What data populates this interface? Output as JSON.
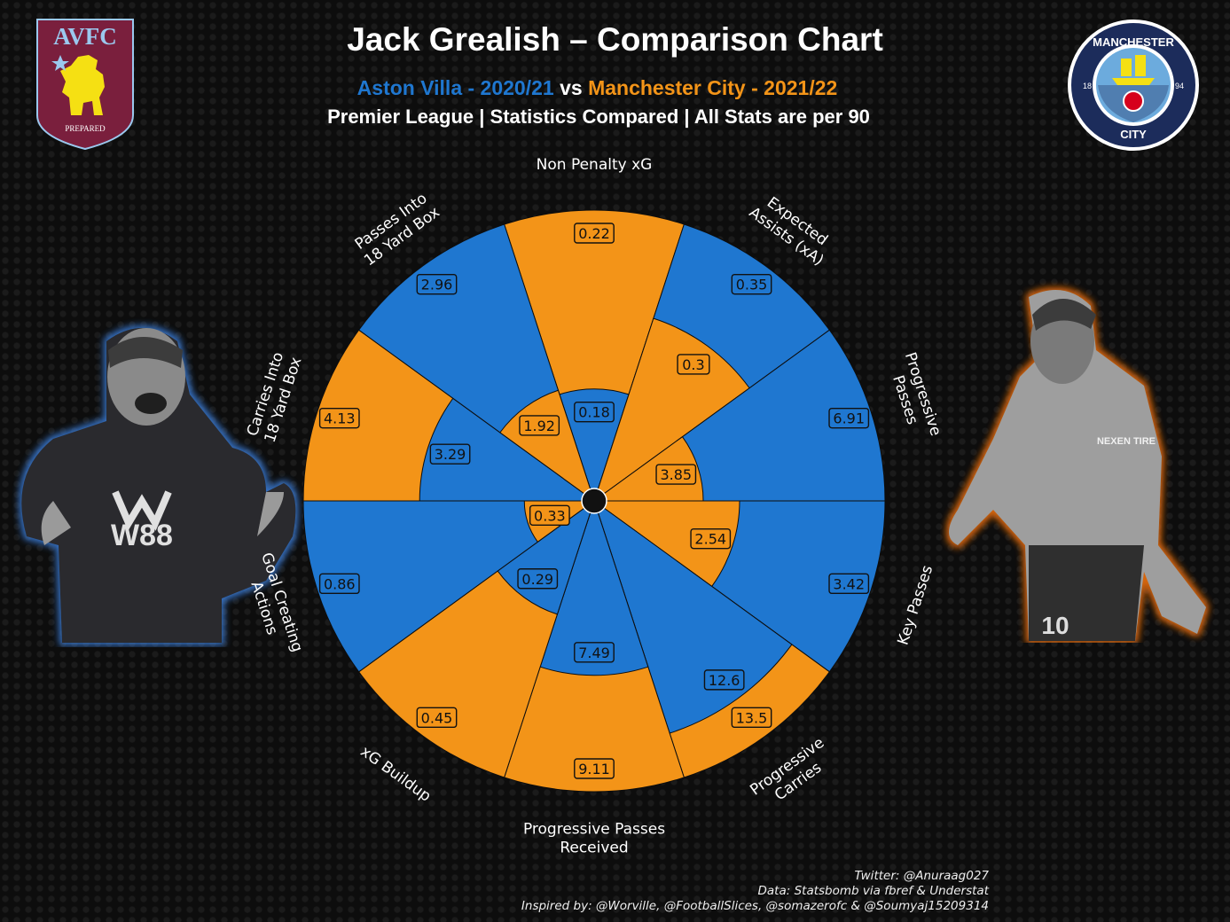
{
  "title": "Jack Grealish – Comparison Chart",
  "subtitle": {
    "villa": "Aston Villa - 2020/21",
    "vs": "vs",
    "city": "Manchester City - 2021/22",
    "line2": "Premier League | Statistics Compared | All Stats are per 90"
  },
  "colors": {
    "villa": "#1f77d0",
    "city": "#f39418",
    "villa_badge": "#7a1f3d",
    "city_badge": "#1c2c5b"
  },
  "badges": {
    "villa": {
      "text": "AVFC",
      "motto": "PREPARED"
    },
    "city": {
      "top_text": "MANCHESTER",
      "bottom_text": "CITY",
      "year_left": "18",
      "year_right": "94"
    }
  },
  "players": {
    "left": {
      "shirt_text": "W88",
      "kit": "Aston Villa home kit"
    },
    "right": {
      "shirt_text": "NEXEN TIRE",
      "number": "10",
      "kit": "Manchester City home kit"
    }
  },
  "credits": [
    "Twitter: @Anuraag027",
    "Data: Statsbomb via fbref & Understat",
    "Inspired by: @Worville, @FootballSlices, @somazerofc & @Soumyaj15209314"
  ],
  "chart_data": {
    "type": "pizza",
    "series": [
      {
        "name": "Aston Villa - 2020/21",
        "color": "#1f77d0"
      },
      {
        "name": "Manchester City - 2021/22",
        "color": "#f39418"
      }
    ],
    "categories": [
      {
        "label": [
          "Non Penalty xG"
        ],
        "villa": 0.18,
        "city": 0.22,
        "villa_r": 0.385,
        "city_r": 1.0
      },
      {
        "label": [
          "Expected",
          "Assists (xA)"
        ],
        "villa": 0.35,
        "city": 0.3,
        "villa_r": 1.0,
        "city_r": 0.66
      },
      {
        "label": [
          "Progressive",
          "Passes"
        ],
        "villa": 6.91,
        "city": 3.85,
        "villa_r": 1.0,
        "city_r": 0.375
      },
      {
        "label": [
          "Key Passes"
        ],
        "villa": 3.42,
        "city": 2.54,
        "villa_r": 1.0,
        "city_r": 0.5
      },
      {
        "label": [
          "Progressive",
          "Carries"
        ],
        "villa": 12.6,
        "city": 13.5,
        "villa_r": 0.84,
        "city_r": 1.0
      },
      {
        "label": [
          "Progressive Passes",
          "Received"
        ],
        "villa": 7.49,
        "city": 9.11,
        "villa_r": 0.6,
        "city_r": 1.0
      },
      {
        "label": [
          "xG Buildup"
        ],
        "villa": 0.29,
        "city": 0.45,
        "villa_r": 0.41,
        "city_r": 1.0
      },
      {
        "label": [
          "Goal Creating",
          "Actions"
        ],
        "villa": 0.86,
        "city": 0.33,
        "villa_r": 1.0,
        "city_r": 0.24
      },
      {
        "label": [
          "Carries Into",
          "18 Yard Box"
        ],
        "villa": 3.29,
        "city": 4.13,
        "villa_r": 0.6,
        "city_r": 1.0
      },
      {
        "label": [
          "Passes Into",
          "18 Yard Box"
        ],
        "villa": 2.96,
        "city": 1.92,
        "villa_r": 1.0,
        "city_r": 0.4
      }
    ]
  }
}
